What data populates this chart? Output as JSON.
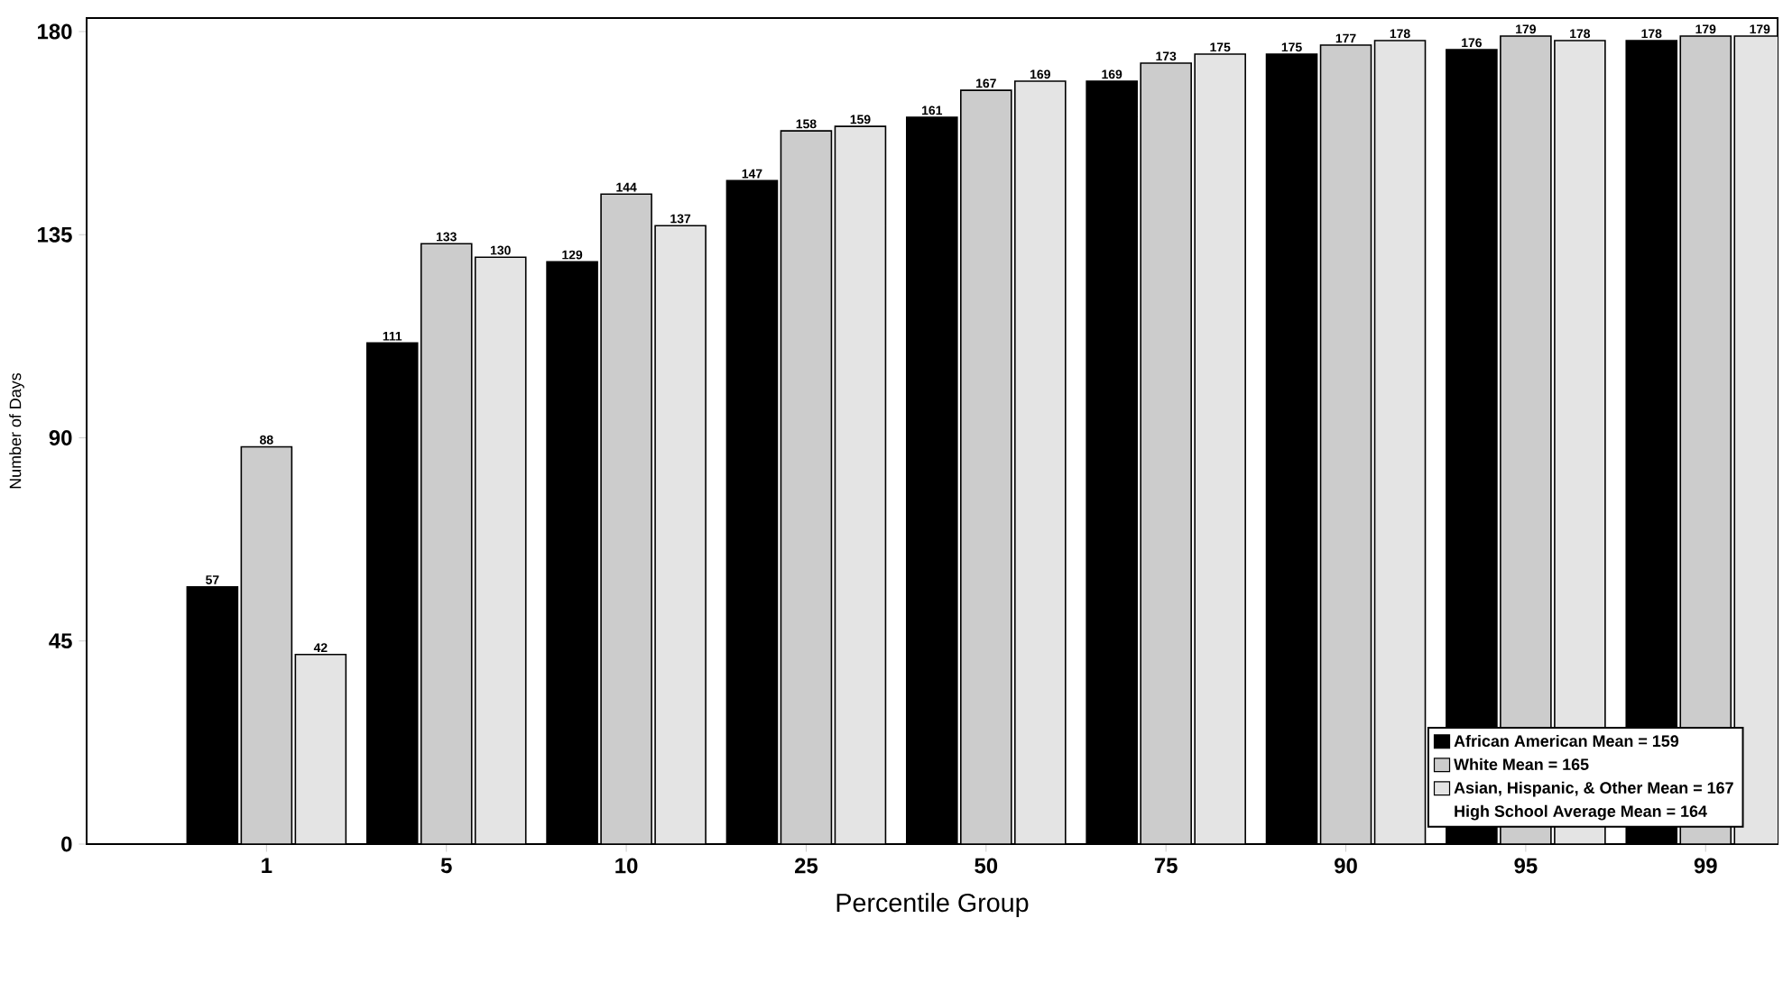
{
  "chart_data": {
    "type": "bar",
    "xlabel": "Percentile Group",
    "ylabel": "Number of Days",
    "categories": [
      "1",
      "5",
      "10",
      "25",
      "50",
      "75",
      "90",
      "95",
      "99"
    ],
    "series": [
      {
        "name": "African American Mean = 159",
        "color": "#000000",
        "values": [
          57,
          111,
          129,
          147,
          161,
          169,
          175,
          176,
          178
        ]
      },
      {
        "name": "White Mean = 165",
        "color": "#cccccc",
        "values": [
          88,
          133,
          144,
          158,
          167,
          173,
          177,
          179,
          179
        ]
      },
      {
        "name": "Asian, Hispanic, & Other Mean = 167",
        "color": "#e4e4e4",
        "values": [
          42,
          130,
          137,
          159,
          169,
          175,
          178,
          178,
          179
        ]
      }
    ],
    "annotations": [
      "High School Average Mean = 164"
    ],
    "ylim": [
      0,
      183
    ],
    "yticks": [
      0,
      45,
      90,
      135,
      180
    ],
    "data_labels": true,
    "legend": "bottom right",
    "grid": false
  }
}
